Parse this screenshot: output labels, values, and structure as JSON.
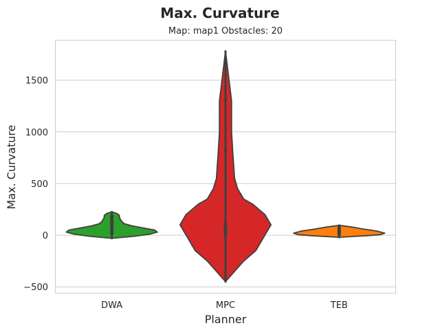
{
  "chart_data": {
    "type": "violin",
    "title": "Max. Curvature",
    "subtitle": "Map: map1 Obstacles: 20",
    "xlabel": "Planner",
    "ylabel": "Max. Curvature",
    "categories": [
      "DWA",
      "MPC",
      "TEB"
    ],
    "ylim": [
      -565,
      1890
    ],
    "yticks": [
      -500,
      0,
      500,
      1000,
      1500
    ],
    "ytick_labels": [
      "−500",
      "0",
      "500",
      "1000",
      "1500"
    ],
    "grid": true,
    "series": [
      {
        "category": "DWA",
        "color": "#2ca02c",
        "range": [
          -30,
          225
        ],
        "profile": [
          [
            -30,
            0
          ],
          [
            -10,
            18
          ],
          [
            10,
            30
          ],
          [
            30,
            36
          ],
          [
            50,
            34
          ],
          [
            70,
            25
          ],
          [
            90,
            16
          ],
          [
            110,
            10
          ],
          [
            130,
            8
          ],
          [
            150,
            7
          ],
          [
            170,
            6
          ],
          [
            190,
            6
          ],
          [
            210,
            4
          ],
          [
            225,
            0
          ]
        ],
        "points": [
          15,
          25,
          35,
          45,
          60,
          75,
          95,
          115,
          130,
          150,
          170,
          185
        ]
      },
      {
        "category": "MPC",
        "color": "#d62728",
        "range": [
          -450,
          1780
        ],
        "profile": [
          [
            -450,
            0
          ],
          [
            -350,
            1.5
          ],
          [
            -250,
            3
          ],
          [
            -150,
            5
          ],
          [
            -50,
            6
          ],
          [
            0,
            6.5
          ],
          [
            50,
            7
          ],
          [
            100,
            7.5
          ],
          [
            150,
            7
          ],
          [
            200,
            6.5
          ],
          [
            250,
            5.5
          ],
          [
            300,
            4.5
          ],
          [
            350,
            3
          ],
          [
            450,
            2
          ],
          [
            550,
            1.5
          ],
          [
            800,
            1.2
          ],
          [
            1000,
            1
          ],
          [
            1300,
            1
          ],
          [
            1780,
            0
          ]
        ],
        "points": [
          0,
          10,
          25,
          40,
          55,
          75,
          95,
          110,
          820,
          1310
        ]
      },
      {
        "category": "TEB",
        "color": "#ff7f0e",
        "range": [
          -20,
          95
        ],
        "profile": [
          [
            -20,
            0
          ],
          [
            -5,
            40
          ],
          [
            5,
            60
          ],
          [
            20,
            66
          ],
          [
            40,
            55
          ],
          [
            60,
            35
          ],
          [
            80,
            18
          ],
          [
            95,
            0
          ]
        ],
        "points": [
          5,
          15,
          25,
          35,
          45,
          55,
          65,
          75
        ]
      }
    ]
  }
}
